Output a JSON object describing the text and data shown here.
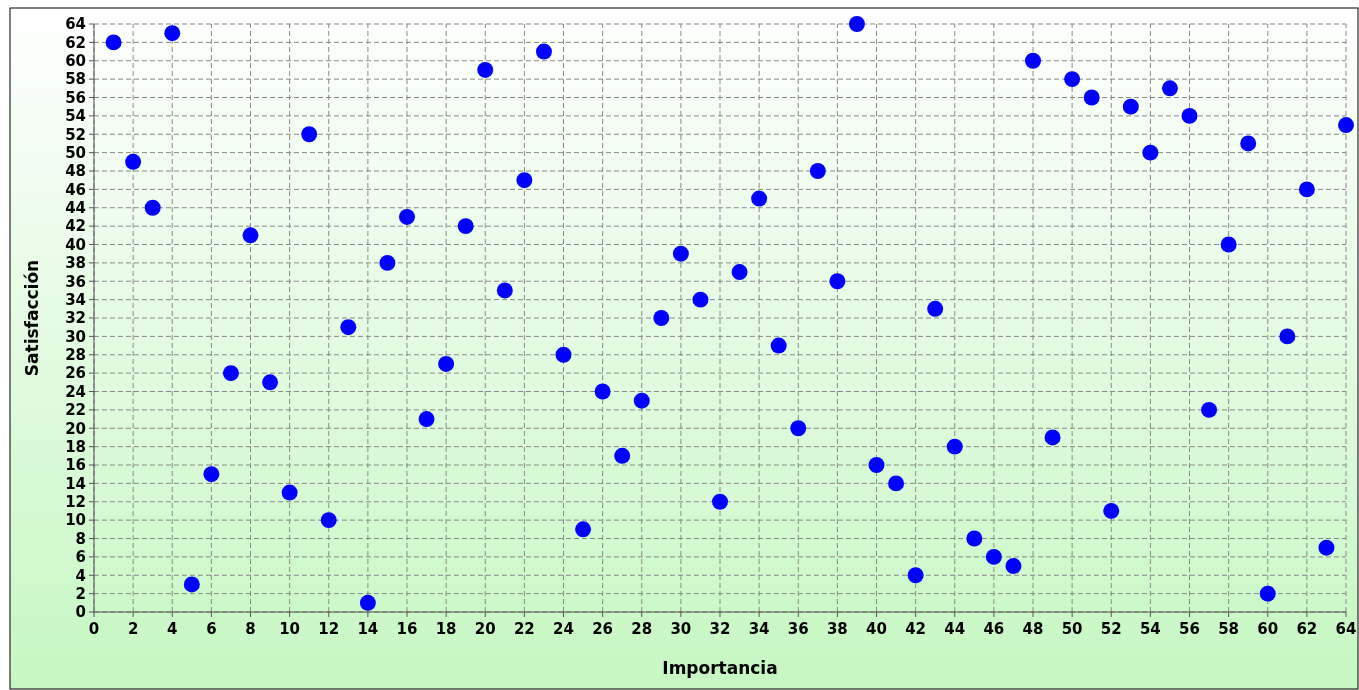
{
  "chart_data": {
    "type": "scatter",
    "xlabel": "Importancia",
    "ylabel": "Satisfacción",
    "x": [
      1,
      2,
      3,
      4,
      5,
      6,
      7,
      8,
      9,
      10,
      11,
      12,
      13,
      14,
      15,
      16,
      17,
      18,
      19,
      20,
      21,
      22,
      23,
      24,
      25,
      26,
      27,
      28,
      29,
      30,
      31,
      32,
      33,
      34,
      35,
      36,
      37,
      38,
      39,
      40,
      41,
      42,
      43,
      44,
      45,
      46,
      47,
      48,
      49,
      50,
      51,
      52,
      53,
      54,
      55,
      56,
      57,
      58,
      59,
      60,
      61,
      62,
      63,
      64
    ],
    "series": [
      {
        "color": "#0000ff",
        "values": [
          62,
          49,
          44,
          63,
          3,
          15,
          26,
          41,
          25,
          13,
          52,
          10,
          31,
          1,
          38,
          43,
          21,
          27,
          42,
          59,
          35,
          47,
          61,
          28,
          9,
          24,
          17,
          23,
          32,
          39,
          34,
          12,
          37,
          45,
          29,
          20,
          48,
          36,
          64,
          16,
          14,
          4,
          33,
          18,
          8,
          6,
          5,
          60,
          19,
          58,
          56,
          11,
          55,
          50,
          57,
          54,
          22,
          40,
          51,
          2,
          30,
          46,
          7,
          53
        ]
      }
    ],
    "xlim": [
      0,
      64
    ],
    "ylim": [
      0,
      64
    ],
    "xticks": [
      0,
      2,
      4,
      6,
      8,
      10,
      12,
      14,
      16,
      18,
      20,
      22,
      24,
      26,
      28,
      30,
      32,
      34,
      36,
      38,
      40,
      42,
      44,
      46,
      48,
      50,
      52,
      54,
      56,
      58,
      60,
      62,
      64
    ],
    "yticks": [
      0,
      2,
      4,
      6,
      8,
      10,
      12,
      14,
      16,
      18,
      20,
      22,
      24,
      26,
      28,
      30,
      32,
      34,
      36,
      38,
      40,
      42,
      44,
      46,
      48,
      50,
      52,
      54,
      56,
      58,
      60,
      62,
      64
    ],
    "grid": true,
    "marker": "circle"
  }
}
